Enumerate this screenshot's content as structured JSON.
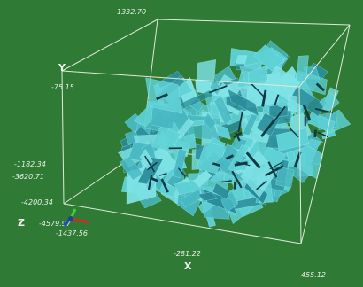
{
  "colors": {
    "background": "#2f7a34",
    "box_edges": "#dfe9d8",
    "fracture_fill": "#5fd1d6",
    "fracture_shade": "#2a8c99",
    "fracture_dark": "#0f3a44",
    "axis_x": "#d22a2a",
    "axis_y": "#3fd23f",
    "axis_z": "#2a3fd2"
  },
  "axes": {
    "x_name": "X",
    "y_name": "Y",
    "z_name": "Z"
  },
  "ticks": {
    "top_corner": "1332.70",
    "y_mid": "-75.15",
    "y_lower": "-1182.34",
    "z_a": "-3620.71",
    "z_b": "-4200.34",
    "origin_z": "-4579.97",
    "origin_x": "-1437.56",
    "x_mid": "-281.22",
    "x_far": "455.12"
  },
  "icons": {
    "axis_triad": "xyz-axis-triad-icon"
  }
}
